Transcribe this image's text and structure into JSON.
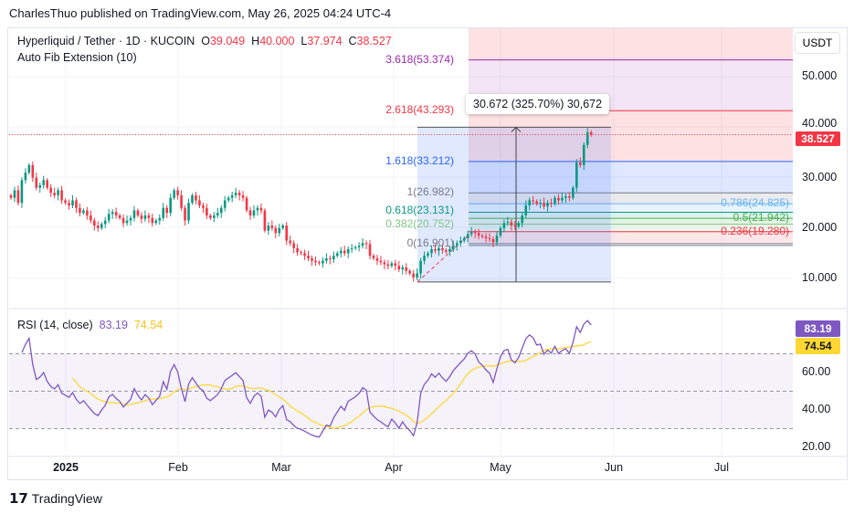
{
  "header": {
    "published": "CharlesThuo published on TradingView.com, May 26, 2025 04:24 UTC-4"
  },
  "legend": {
    "symbol": "Hyperliquid / Tether · 1D · KUCOIN",
    "o_label": "O",
    "o": "39.049",
    "h_label": "H",
    "h": "40.000",
    "l_label": "L",
    "l": "37.974",
    "c_label": "C",
    "c": "38.527",
    "indicator": "Auto Fib Extension (10)"
  },
  "currency_button": "USDT",
  "last_price_label": "38.527",
  "measure_label": "30.672 (325.70%) 30,672",
  "rsi": {
    "label": "RSI (14, close)",
    "value": "83.19",
    "ma_value": "74.54",
    "line_color": "#7e57c2",
    "ma_color": "#fdd835"
  },
  "colors": {
    "up": "#089981",
    "down": "#f23645"
  },
  "branding": "TradingView",
  "chart_data": [
    {
      "type": "candlestick",
      "title": "Hyperliquid / Tether · 1D · KUCOIN",
      "start_date": "2024-12-17",
      "end_date": "2025-05-26",
      "closes": [
        26.0,
        27.5,
        25.0,
        29.5,
        31.0,
        32.5,
        30.0,
        28.0,
        28.5,
        29.5,
        28.0,
        27.0,
        26.5,
        27.5,
        25.5,
        25.0,
        24.5,
        25.5,
        24.0,
        23.0,
        23.5,
        22.5,
        21.5,
        20.5,
        20.0,
        20.8,
        21.5,
        22.8,
        23.2,
        22.5,
        22.0,
        21.0,
        21.5,
        22.0,
        23.5,
        22.5,
        21.8,
        22.5,
        22.0,
        21.0,
        21.5,
        22.0,
        24.0,
        23.0,
        26.0,
        27.5,
        26.5,
        24.0,
        21.5,
        25.0,
        26.5,
        25.5,
        24.5,
        24.0,
        22.5,
        22.0,
        22.5,
        23.0,
        24.0,
        25.5,
        26.0,
        26.5,
        27.0,
        26.5,
        26.0,
        23.5,
        22.5,
        23.5,
        24.0,
        23.5,
        19.5,
        20.5,
        20.0,
        19.0,
        20.0,
        20.5,
        17.5,
        17.0,
        16.0,
        15.2,
        15.0,
        14.5,
        14.0,
        13.5,
        13.2,
        13.0,
        13.5,
        14.0,
        13.8,
        14.5,
        15.0,
        15.5,
        15.0,
        15.8,
        16.0,
        16.2,
        16.5,
        17.0,
        16.8,
        14.5,
        14.0,
        13.5,
        13.2,
        12.8,
        12.5,
        13.0,
        12.5,
        11.8,
        12.2,
        11.5,
        11.0,
        10.2,
        11.0,
        13.5,
        14.5,
        15.0,
        15.8,
        15.5,
        16.0,
        15.6,
        15.3,
        15.8,
        16.5,
        17.0,
        17.5,
        18.0,
        18.8,
        19.2,
        19.0,
        18.5,
        18.3,
        18.0,
        17.8,
        17.2,
        18.5,
        20.0,
        21.0,
        21.2,
        20.5,
        20.3,
        21.0,
        22.5,
        24.5,
        25.5,
        25.3,
        24.8,
        25.0,
        24.3,
        25.0,
        24.8,
        26.0,
        25.5,
        26.0,
        26.3,
        26.0,
        28.0,
        33.0,
        32.5,
        36.5,
        39.0,
        38.527
      ],
      "y_ticks": [
        "10.000",
        "20.000",
        "30.000",
        "40.000",
        "50.000"
      ],
      "ylim": [
        4,
        58
      ],
      "x_ticks": [
        "2025",
        "Feb",
        "Mar",
        "Apr",
        "May",
        "Jun",
        "Jul"
      ],
      "fib_levels": [
        {
          "label": "0(16.901)",
          "price": 16.901,
          "color": "#787b86"
        },
        {
          "label": "0.236(19.280)",
          "price": 19.28,
          "color": "#f23645"
        },
        {
          "label": "0.382(20.752)",
          "price": 20.752,
          "color": "#81c784"
        },
        {
          "label": "0.5(21.942)",
          "price": 21.942,
          "color": "#4caf50"
        },
        {
          "label": "0.618(23.131)",
          "price": 23.131,
          "color": "#089981"
        },
        {
          "label": "0.786(24.825)",
          "price": 24.825,
          "color": "#64b5f6"
        },
        {
          "label": "1(26.982)",
          "price": 26.982,
          "color": "#787b86"
        },
        {
          "label": "1.618(33.212)",
          "price": 33.212,
          "color": "#2962ff"
        },
        {
          "label": "2.618(43.293)",
          "price": 43.293,
          "color": "#f23645"
        },
        {
          "label": "3.618(53.374)",
          "price": 53.374,
          "color": "#9c27b0"
        }
      ],
      "measure": {
        "from": 9.3,
        "to": 40.0,
        "change": "30.672 (325.70%)"
      }
    },
    {
      "type": "line",
      "title": "RSI (14, close)",
      "y_ticks": [
        "20.00",
        "40.00",
        "60.00"
      ],
      "ylim": [
        12,
        95
      ],
      "bands": [
        30,
        50,
        70
      ],
      "last": 83.19,
      "ma_last": 74.54
    }
  ]
}
